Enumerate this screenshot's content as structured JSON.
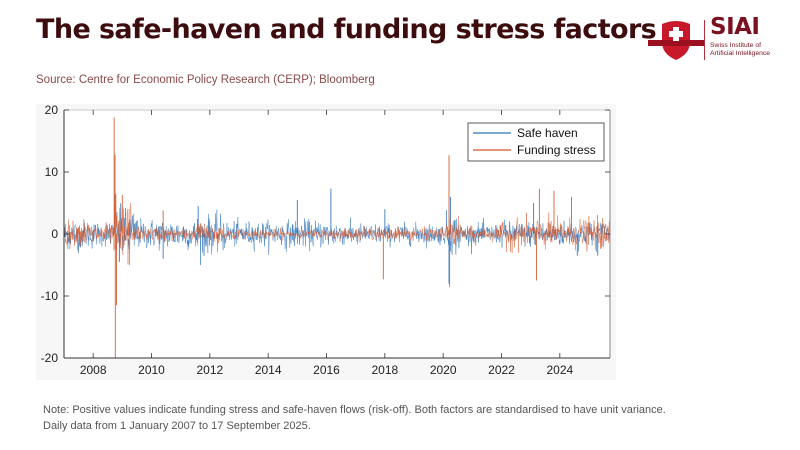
{
  "header": {
    "title": "The safe-haven and funding stress factors",
    "source": "Source: Centre for Economic Policy Research (CERP); Bloomberg"
  },
  "logo": {
    "name": "SIAI",
    "subtitle_line1": "Swiss Institute of",
    "subtitle_line2": "Artificial Intelligence"
  },
  "footer": {
    "note_line1": "Note: Positive values indicate funding stress and safe-haven flows (risk-off). Both factors are standardised to have unit variance.",
    "note_line2": "Daily data from 1 January 2007 to 17 September 2025."
  },
  "chart_data": {
    "type": "line",
    "title": "",
    "xlabel": "",
    "ylabel": "",
    "xlim": [
      2007.0,
      2025.72
    ],
    "ylim": [
      -20,
      20
    ],
    "grid": false,
    "legend_position": "top-right",
    "x_ticks": [
      2008,
      2010,
      2012,
      2014,
      2016,
      2018,
      2020,
      2022,
      2024
    ],
    "x_tick_labels": [
      "2008",
      "2010",
      "2012",
      "2014",
      "2016",
      "2018",
      "2020",
      "2022",
      "2024"
    ],
    "y_ticks": [
      -20,
      -10,
      0,
      10,
      20
    ],
    "y_tick_labels": [
      "-20",
      "-10",
      "0",
      "10",
      "20"
    ],
    "series": [
      {
        "name": "Safe haven",
        "color": "#2f73b8",
        "volatility_regimes": [
          [
            2007.0,
            1.3
          ],
          [
            2008.0,
            1.1
          ],
          [
            2008.7,
            2.2
          ],
          [
            2009.5,
            1.3
          ],
          [
            2011.5,
            1.6
          ],
          [
            2012.5,
            1.1
          ],
          [
            2014.5,
            1.2
          ],
          [
            2016.5,
            0.9
          ],
          [
            2020.1,
            1.8
          ],
          [
            2020.6,
            0.9
          ],
          [
            2022.0,
            1.1
          ],
          [
            2025.72,
            1.1
          ]
        ],
        "spikes": [
          [
            2008.75,
            6.5
          ],
          [
            2008.9,
            -4.5
          ],
          [
            2010.4,
            -4.0
          ],
          [
            2011.6,
            4.5
          ],
          [
            2011.8,
            -3.5
          ],
          [
            2015.0,
            5.5
          ],
          [
            2016.15,
            7.3
          ],
          [
            2018.0,
            4.0
          ],
          [
            2020.2,
            -8.0
          ],
          [
            2020.25,
            6.0
          ],
          [
            2023.1,
            5.0
          ],
          [
            2024.6,
            -3.5
          ],
          [
            2025.3,
            -3.5
          ]
        ]
      },
      {
        "name": "Funding stress",
        "color": "#d4582a",
        "volatility_regimes": [
          [
            2007.0,
            1.1
          ],
          [
            2008.0,
            0.9
          ],
          [
            2008.7,
            3.0
          ],
          [
            2009.3,
            0.6
          ],
          [
            2011.5,
            1.0
          ],
          [
            2012.5,
            0.4
          ],
          [
            2016.0,
            0.5
          ],
          [
            2020.1,
            1.2
          ],
          [
            2020.6,
            0.6
          ],
          [
            2022.0,
            1.3
          ],
          [
            2025.72,
            1.1
          ]
        ],
        "spikes": [
          [
            2008.72,
            18.8
          ],
          [
            2008.75,
            12.8
          ],
          [
            2008.76,
            -20.0
          ],
          [
            2008.8,
            -11.5
          ],
          [
            2009.0,
            6.3
          ],
          [
            2010.4,
            3.8
          ],
          [
            2017.95,
            -7.3
          ],
          [
            2020.2,
            12.7
          ],
          [
            2020.22,
            -8.5
          ],
          [
            2023.2,
            -7.5
          ],
          [
            2023.3,
            7.3
          ],
          [
            2023.8,
            7.0
          ],
          [
            2024.4,
            6.0
          ]
        ]
      }
    ]
  }
}
